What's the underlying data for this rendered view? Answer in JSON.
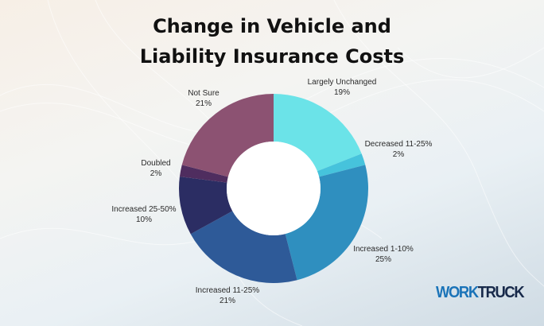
{
  "chart_data": {
    "type": "pie",
    "title_lines": [
      "Change in Vehicle and",
      "Liability Insurance Costs"
    ],
    "donut": true,
    "slices": [
      {
        "label": "Largely Unchanged",
        "pct_text": "19%",
        "value": 19,
        "color": "#6be3e8"
      },
      {
        "label": "Decreased 11-25%",
        "pct_text": "2%",
        "value": 2,
        "color": "#46c3dc"
      },
      {
        "label": "Increased 1-10%",
        "pct_text": "25%",
        "value": 25,
        "color": "#2f8fbf"
      },
      {
        "label": "Increased 11-25%",
        "pct_text": "21%",
        "value": 21,
        "color": "#2e5a98"
      },
      {
        "label": "Increased 25-50%",
        "pct_text": "10%",
        "value": 10,
        "color": "#2b2d63"
      },
      {
        "label": "Doubled",
        "pct_text": "2%",
        "value": 2,
        "color": "#4f2d5f"
      },
      {
        "label": "Not Sure",
        "pct_text": "21%",
        "value": 21,
        "color": "#8c5272"
      }
    ]
  },
  "logo": {
    "part1": "WORK",
    "part2": "TRUCK"
  }
}
